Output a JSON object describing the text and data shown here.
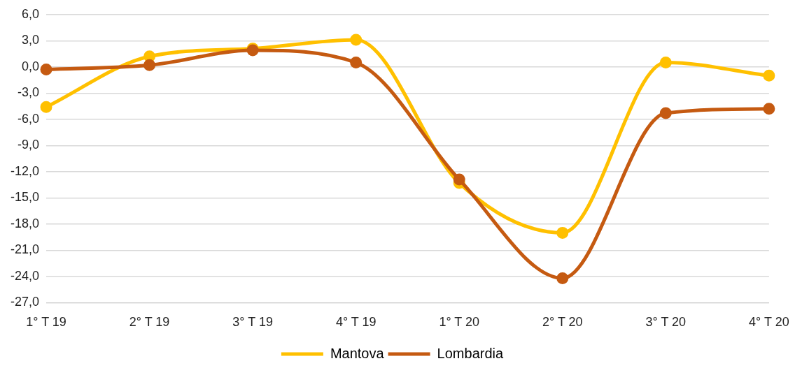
{
  "chart_data": {
    "type": "line",
    "categories": [
      "1° T 19",
      "2° T 19",
      "3° T 19",
      "4° T 19",
      "1° T 20",
      "2° T 20",
      "3° T 20",
      "4° T 20"
    ],
    "series": [
      {
        "name": "Mantova",
        "color": "#ffc000",
        "values": [
          -4.6,
          1.2,
          2.1,
          3.1,
          -13.3,
          -19.0,
          0.5,
          -1.0
        ]
      },
      {
        "name": "Lombardia",
        "color": "#c55a11",
        "values": [
          -0.3,
          0.2,
          1.9,
          0.5,
          -12.9,
          -24.2,
          -5.3,
          -4.8
        ]
      }
    ],
    "ylim": [
      -27,
      6
    ],
    "yticks": [
      {
        "value": 6,
        "label": "6,0"
      },
      {
        "value": 3,
        "label": "3,0"
      },
      {
        "value": 0,
        "label": "0,0"
      },
      {
        "value": -3,
        "label": "-3,0"
      },
      {
        "value": -6,
        "label": "-6,0"
      },
      {
        "value": -9,
        "label": "-9,0"
      },
      {
        "value": -12,
        "label": "-12,0"
      },
      {
        "value": -15,
        "label": "-15,0"
      },
      {
        "value": -18,
        "label": "-18,0"
      },
      {
        "value": -21,
        "label": "-21,0"
      },
      {
        "value": -24,
        "label": "-24,0"
      },
      {
        "value": -27,
        "label": "-27,0"
      }
    ],
    "grid": "y",
    "legend": "bottom",
    "marker": "circle",
    "line_style": "solid"
  }
}
